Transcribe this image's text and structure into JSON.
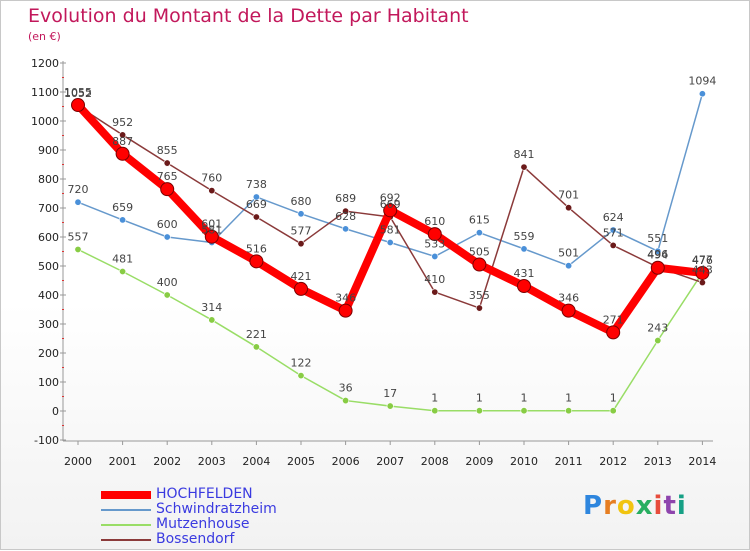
{
  "title": "Evolution du Montant de la Dette par Habitant",
  "subtitle": "(en €)",
  "logo_text": "Proxiti",
  "chart_data": {
    "type": "line",
    "title": "Evolution du Montant de la Dette par Habitant",
    "subtitle": "(en €)",
    "xlabel": "",
    "ylabel": "",
    "x": [
      "2000",
      "2001",
      "2002",
      "2003",
      "2004",
      "2005",
      "2006",
      "2007",
      "2008",
      "2009",
      "2010",
      "2011",
      "2012",
      "2013",
      "2014"
    ],
    "ylim": [
      -100,
      1200
    ],
    "yticks": [
      -100,
      0,
      100,
      200,
      300,
      400,
      500,
      600,
      700,
      800,
      900,
      1000,
      1100,
      1200
    ],
    "grid": false,
    "legend_position": "bottom-left",
    "series": [
      {
        "name": "HOCHFELDEN",
        "color": "#ff0000",
        "marker_color": "#ff0000",
        "stroke_width": 8,
        "marker_radius": 6.5,
        "values": [
          1055,
          887,
          765,
          601,
          516,
          421,
          346,
          692,
          610,
          505,
          431,
          346,
          271,
          494,
          476
        ]
      },
      {
        "name": "Schwindratzheim",
        "color": "#6699cc",
        "marker_color": "#4a90d9",
        "stroke_width": 1.5,
        "marker_radius": 3.2,
        "values": [
          720,
          659,
          600,
          581,
          738,
          680,
          628,
          581,
          533,
          615,
          559,
          501,
          624,
          551,
          1094
        ]
      },
      {
        "name": "Mutzenhouse",
        "color": "#99dd66",
        "marker_color": "#88cc44",
        "stroke_width": 1.5,
        "marker_radius": 3.2,
        "values": [
          557,
          481,
          400,
          314,
          221,
          122,
          36,
          17,
          1,
          1,
          1,
          1,
          1,
          243,
          477
        ]
      },
      {
        "name": "Bossendorf",
        "color": "#8b3a3a",
        "marker_color": "#6b1a1a",
        "stroke_width": 1.5,
        "marker_radius": 3.2,
        "values": [
          1052,
          952,
          855,
          760,
          669,
          577,
          689,
          669,
          410,
          355,
          841,
          701,
          571,
          496,
          443
        ]
      }
    ],
    "data_labels": {
      "HOCHFELDEN": [
        "1055",
        "887",
        "765",
        "601",
        "516",
        "421",
        "346",
        "692",
        "610",
        "505",
        "431",
        "346",
        "271",
        "494",
        "476"
      ],
      "Schwindratzheim": [
        "720",
        "659",
        "600",
        "581",
        "738",
        "680",
        "628",
        "581",
        "533",
        "615",
        "559",
        "501",
        "624",
        "551",
        "1094"
      ],
      "Mutzenhouse": [
        "557",
        "481",
        "400",
        "314",
        "221",
        "122",
        "36",
        "17",
        "1",
        "1",
        "1",
        "1",
        "1",
        "243",
        "477"
      ],
      "Bossendorf": [
        "1052",
        "952",
        "855",
        "760",
        "669",
        "577",
        "689",
        "669",
        "410",
        "355",
        "841",
        "701",
        "571",
        "496",
        "443"
      ]
    }
  }
}
